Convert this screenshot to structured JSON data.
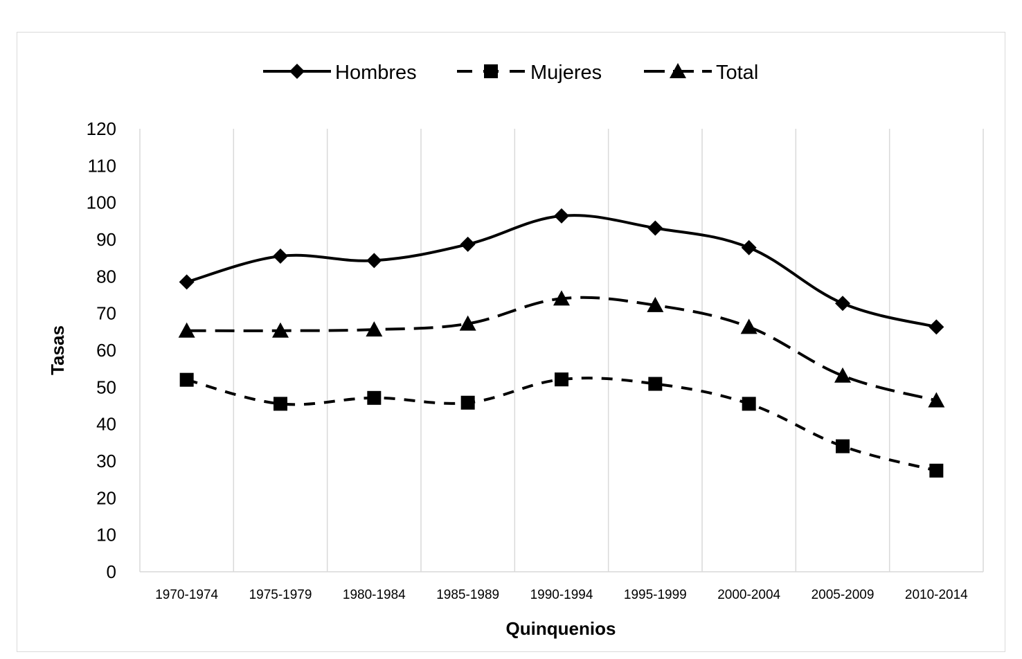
{
  "chart_data": {
    "type": "line",
    "title": "",
    "xlabel": "Quinquenios",
    "ylabel": "Tasas",
    "ylim": [
      0,
      120
    ],
    "y_ticks": [
      0,
      10,
      20,
      30,
      40,
      50,
      60,
      70,
      80,
      90,
      100,
      110,
      120
    ],
    "grid": "vertical",
    "legend_position": "top-center",
    "categories": [
      "1970-1974",
      "1975-1979",
      "1980-1984",
      "1985-1989",
      "1990-1994",
      "1995-1999",
      "2000-2004",
      "2005-2009",
      "2010-2014"
    ],
    "series": [
      {
        "name": "Hombres",
        "marker": "diamond",
        "line_style": "solid",
        "color": "#000000",
        "values": [
          78.5,
          85.5,
          84.3,
          88.7,
          96.4,
          93.1,
          87.8,
          72.7,
          66.3
        ]
      },
      {
        "name": "Mujeres",
        "marker": "square",
        "line_style": "dashed",
        "color": "#000000",
        "values": [
          52.0,
          45.5,
          47.1,
          45.8,
          52.1,
          50.9,
          45.5,
          34.0,
          27.4
        ]
      },
      {
        "name": "Total",
        "marker": "triangle",
        "line_style": "long-dash",
        "color": "#000000",
        "values": [
          65.3,
          65.3,
          65.6,
          67.2,
          74.0,
          72.2,
          66.3,
          53.1,
          46.4
        ]
      }
    ]
  }
}
